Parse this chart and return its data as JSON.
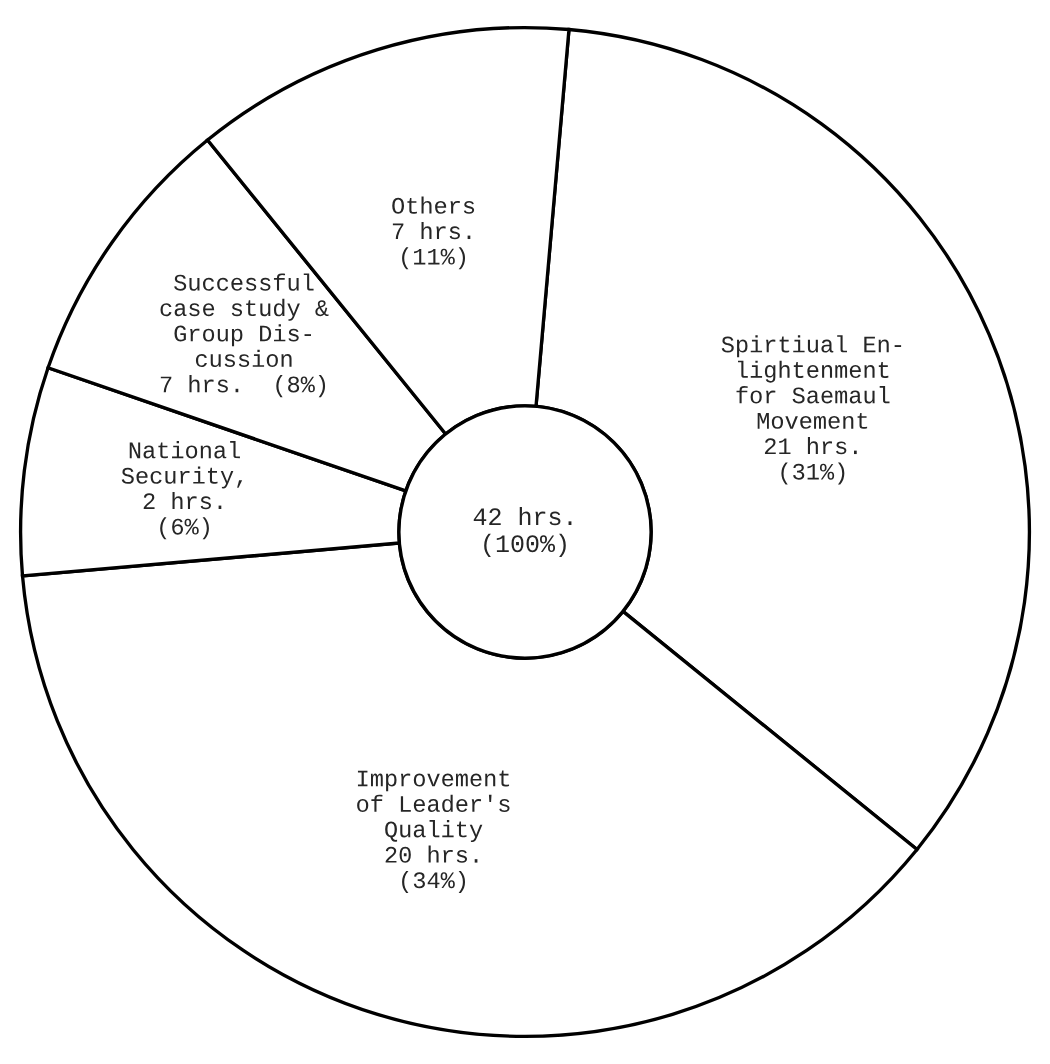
{
  "chart_data": {
    "type": "donut",
    "categories": [
      "Spirtiual En-\nlightenment\nfor Saemaul\nMovement",
      "Improvement\nof Leader's\nQuality",
      "National\nSecurity",
      "Successful\ncase study &\nGroup Dis-\ncussion",
      "Others"
    ],
    "values": [
      31,
      34,
      6,
      8,
      11
    ],
    "value_labels": [
      "\n21 hrs.\n(31%)",
      "\n20 hrs.\n(34%)",
      ",\n2 hrs.\n(6%)",
      "\n7 hrs.  (8%)",
      "\n7 hrs.\n(11%)"
    ],
    "colors": [
      "#ffffff",
      "#ffffff",
      "#ffffff",
      "#ffffff",
      "#ffffff"
    ],
    "annotations": [
      "42 hrs.\n(100%)"
    ]
  }
}
